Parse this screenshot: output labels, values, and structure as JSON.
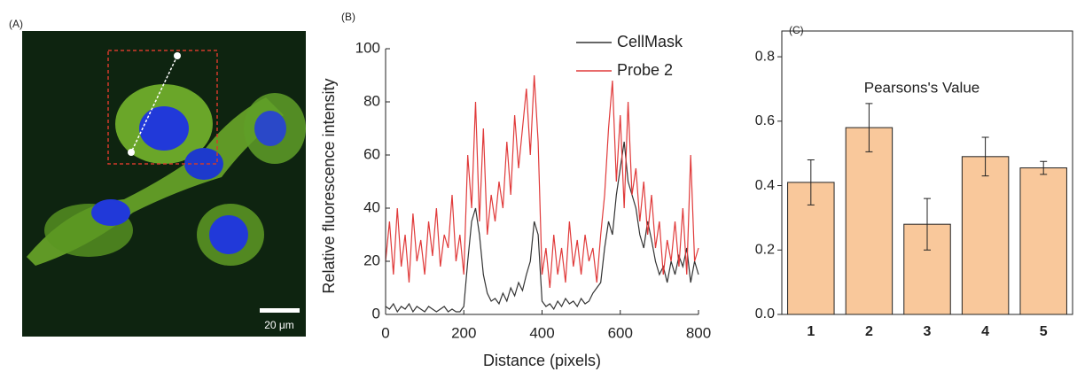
{
  "chart_data": [
    {
      "type": "image",
      "panel_label": "(A)",
      "scale_label": "20 μm"
    },
    {
      "type": "line",
      "panel_label": "(B)",
      "xlabel": "Distance (pixels)",
      "ylabel": "Relative fluorescence intensity",
      "x": [
        0,
        10,
        20,
        30,
        40,
        50,
        60,
        70,
        80,
        90,
        100,
        110,
        120,
        130,
        140,
        150,
        160,
        170,
        180,
        190,
        200,
        210,
        220,
        230,
        240,
        250,
        260,
        270,
        280,
        290,
        300,
        310,
        320,
        330,
        340,
        350,
        360,
        370,
        380,
        390,
        400,
        410,
        420,
        430,
        440,
        450,
        460,
        470,
        480,
        490,
        500,
        510,
        520,
        530,
        540,
        550,
        560,
        570,
        580,
        590,
        600,
        610,
        620,
        630,
        640,
        650,
        660,
        670,
        680,
        690,
        700,
        710,
        720,
        730,
        740,
        750,
        760,
        770,
        780,
        790,
        800
      ],
      "series": [
        {
          "name": "CellMask",
          "color": "#333333",
          "values": [
            3,
            2,
            4,
            1,
            3,
            2,
            4,
            1,
            3,
            2,
            1,
            3,
            2,
            1,
            2,
            3,
            1,
            2,
            1,
            1,
            3,
            20,
            35,
            40,
            30,
            15,
            8,
            5,
            6,
            4,
            8,
            5,
            10,
            7,
            12,
            9,
            15,
            20,
            35,
            30,
            5,
            3,
            4,
            2,
            5,
            3,
            6,
            4,
            5,
            3,
            6,
            4,
            5,
            8,
            10,
            12,
            25,
            35,
            30,
            45,
            55,
            65,
            50,
            45,
            40,
            30,
            25,
            35,
            28,
            20,
            15,
            18,
            12,
            20,
            15,
            22,
            18,
            25,
            12,
            20,
            15
          ]
        },
        {
          "name": "Probe 2",
          "color": "#e03a3a",
          "values": [
            20,
            35,
            15,
            40,
            18,
            30,
            12,
            38,
            20,
            28,
            15,
            35,
            22,
            40,
            18,
            30,
            25,
            45,
            20,
            30,
            15,
            60,
            40,
            80,
            35,
            70,
            30,
            45,
            35,
            50,
            40,
            65,
            45,
            75,
            55,
            70,
            85,
            60,
            90,
            65,
            15,
            25,
            10,
            30,
            15,
            25,
            12,
            35,
            18,
            28,
            15,
            30,
            20,
            25,
            12,
            30,
            45,
            70,
            88,
            50,
            75,
            40,
            80,
            45,
            55,
            35,
            50,
            30,
            45,
            25,
            35,
            15,
            28,
            20,
            35,
            18,
            40,
            15,
            60,
            20,
            25
          ]
        }
      ],
      "xlim": [
        0,
        800
      ],
      "ylim": [
        0,
        100
      ],
      "xticks": [
        0,
        200,
        400,
        600,
        800
      ],
      "yticks": [
        0,
        20,
        40,
        60,
        80,
        100
      ],
      "legend": "upper right"
    },
    {
      "type": "bar",
      "panel_label": "(C)",
      "title": "Pearsons's Value",
      "categories": [
        "1",
        "2",
        "3",
        "4",
        "5"
      ],
      "values": [
        0.41,
        0.58,
        0.28,
        0.49,
        0.455
      ],
      "errors": [
        0.07,
        0.075,
        0.08,
        0.06,
        0.02
      ],
      "color": "#f9c89b",
      "ylim": [
        0,
        0.88
      ],
      "yticks": [
        {
          "value": 0,
          "label": "0.0"
        },
        0.2,
        0.4,
        0.6,
        0.8
      ]
    }
  ]
}
